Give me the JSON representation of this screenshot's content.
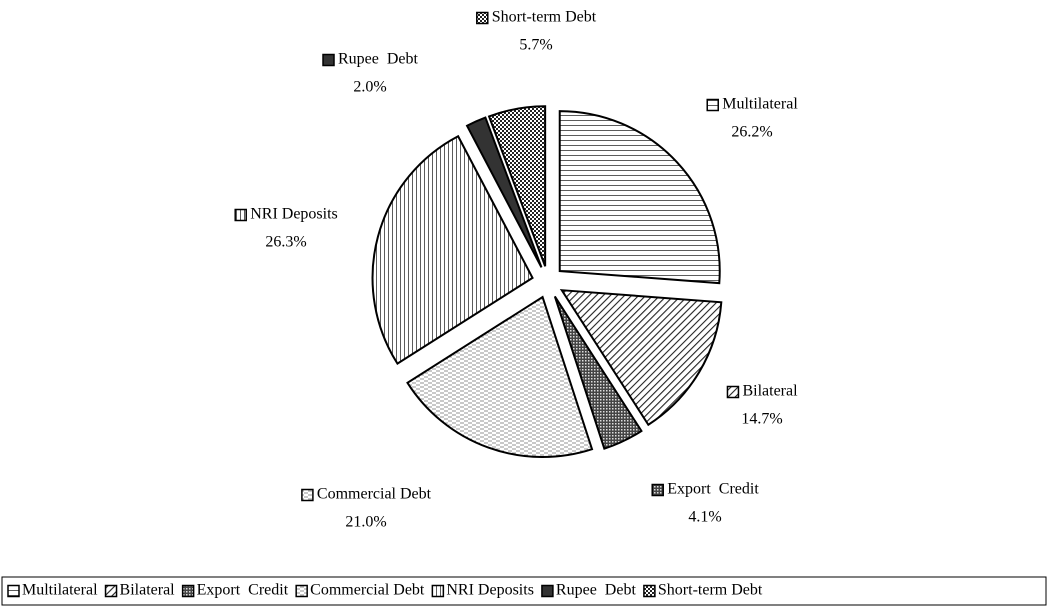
{
  "chart_data": {
    "type": "pie",
    "categories": [
      "Multilateral",
      "Bilateral",
      "Export  Credit",
      "Commercial Debt",
      "NRI Deposits",
      "Rupee  Debt",
      "Short-term Debt"
    ],
    "values": [
      26.2,
      14.7,
      4.1,
      21.0,
      26.3,
      2.0,
      5.7
    ],
    "value_labels": [
      "26.2%",
      "14.7%",
      "4.1%",
      "21.0%",
      "26.3%",
      "2.0%",
      "5.7%"
    ],
    "legend": "bottom"
  }
}
